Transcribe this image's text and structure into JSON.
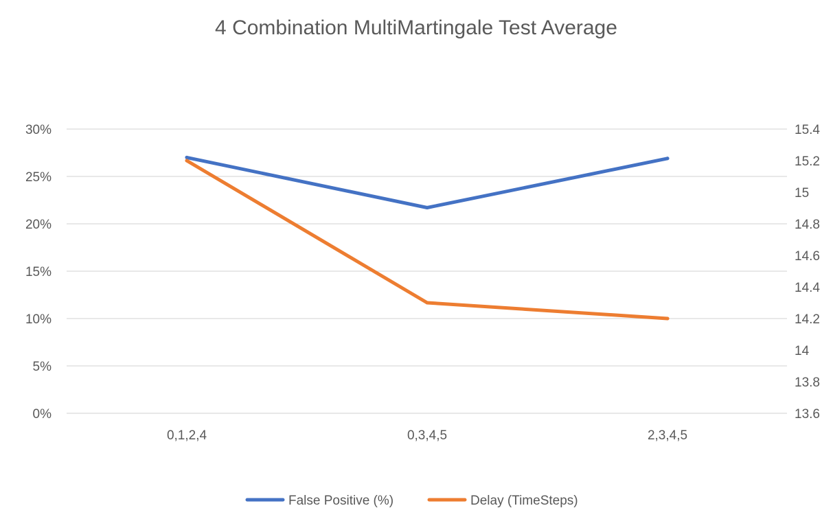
{
  "chart_data": {
    "type": "line",
    "title": "4 Combination MultiMartingale Test Average",
    "categories": [
      "0,1,2,4",
      "0,3,4,5",
      "2,3,4,5"
    ],
    "series": [
      {
        "name": "False Positive (%)",
        "axis": "left",
        "color": "#4472C4",
        "values": [
          0.27,
          0.217,
          0.269
        ]
      },
      {
        "name": "Delay (TimeSteps)",
        "axis": "right",
        "color": "#ED7D31",
        "values": [
          15.2,
          14.3,
          14.2
        ]
      }
    ],
    "y_left": {
      "min": 0,
      "max": 0.3,
      "ticks": [
        0,
        0.05,
        0.1,
        0.15,
        0.2,
        0.25,
        0.3
      ],
      "tick_labels": [
        "0%",
        "5%",
        "10%",
        "15%",
        "20%",
        "25%",
        "30%"
      ]
    },
    "y_right": {
      "min": 13.6,
      "max": 15.4,
      "ticks": [
        13.6,
        13.8,
        14,
        14.2,
        14.4,
        14.6,
        14.8,
        15,
        15.2,
        15.4
      ],
      "tick_labels": [
        "13.6",
        "13.8",
        "14",
        "14.2",
        "14.4",
        "14.6",
        "14.8",
        "15",
        "15.2",
        "15.4"
      ]
    },
    "grid": true,
    "legend": "bottom",
    "xlabel": "",
    "ylabel": ""
  }
}
